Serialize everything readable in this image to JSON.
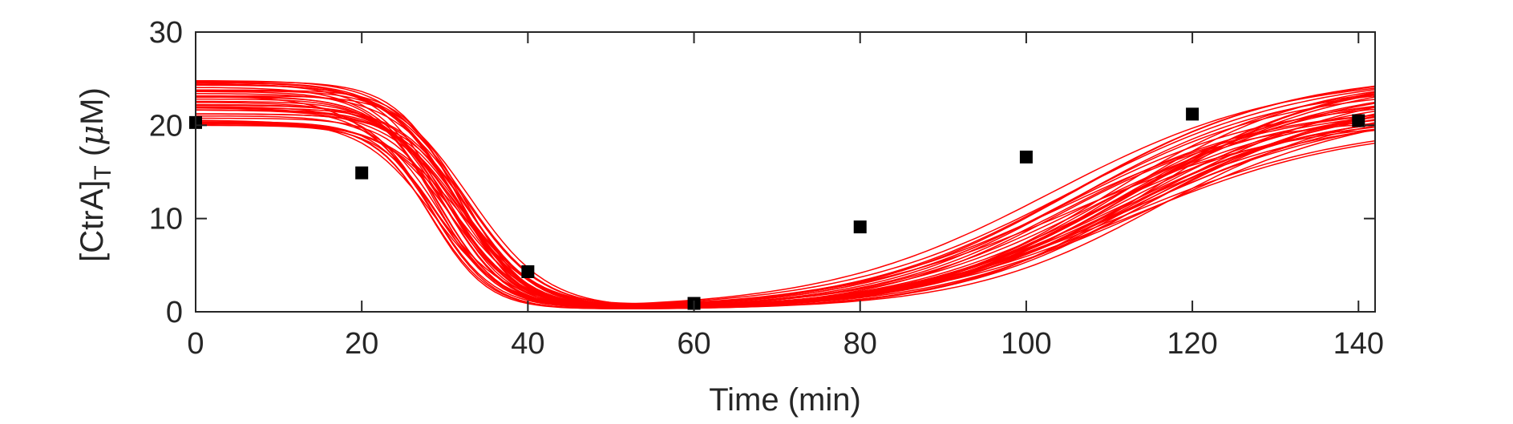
{
  "chart_data": {
    "type": "line",
    "title": "",
    "xlabel": "Time (min)",
    "ylabel": {
      "main": "[CtrA]",
      "subscript": "T",
      "unit_open": " (",
      "unit_mu": "μ",
      "unit_close": "M)"
    },
    "xlim": [
      0,
      142
    ],
    "ylim": [
      0,
      30
    ],
    "xticks": [
      0,
      20,
      40,
      60,
      80,
      100,
      120,
      140
    ],
    "yticks": [
      0,
      10,
      20,
      30
    ],
    "grid": false,
    "legend": "none",
    "colors": {
      "curves": "#ff0000",
      "markers": "#000000",
      "axis": "#262626"
    },
    "curve_series": {
      "count": 40,
      "color": "#ff0000",
      "initial_level_range": [
        20,
        25
      ],
      "final_level_range": [
        20,
        26
      ],
      "minimum_level": 0.2,
      "x_step": 1
    },
    "observed": {
      "marker": "square",
      "x": [
        0,
        20,
        40,
        60,
        80,
        100,
        120,
        140
      ],
      "y": [
        20.3,
        14.9,
        4.3,
        0.9,
        9.1,
        16.6,
        21.2,
        20.5
      ]
    }
  }
}
